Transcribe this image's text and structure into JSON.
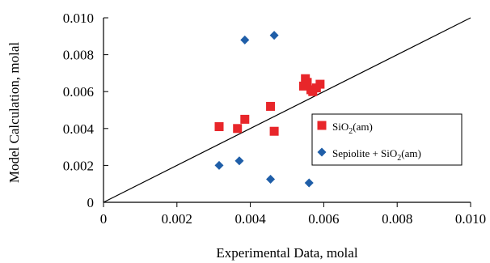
{
  "chart_data": {
    "type": "scatter",
    "title": "",
    "xlabel": "Experimental Data, molal",
    "ylabel": "Model Calculation, molal",
    "xlim": [
      0,
      0.01
    ],
    "ylim": [
      0,
      0.01
    ],
    "grid": false,
    "legend_position": "right",
    "x_tick_labels": [
      "0",
      "0.002",
      "0.004",
      "0.006",
      "0.008",
      "0.010"
    ],
    "y_tick_labels": [
      "0",
      "0.002",
      "0.004",
      "0.006",
      "0.008",
      "0.010"
    ],
    "x_ticks": [
      0,
      0.002,
      0.004,
      0.006,
      0.008,
      0.01
    ],
    "y_ticks": [
      0,
      0.002,
      0.004,
      0.006,
      0.008,
      0.01
    ],
    "reference_line": {
      "type": "1:1",
      "from": [
        0,
        0
      ],
      "to": [
        0.01,
        0.01
      ]
    },
    "series": [
      {
        "name": "SiO2(am)",
        "legend_base": "SiO",
        "legend_sub": "2",
        "legend_tail": "(am)",
        "marker": "square",
        "color": "#e8262a",
        "points": [
          [
            0.00315,
            0.0041
          ],
          [
            0.00365,
            0.004
          ],
          [
            0.00385,
            0.0045
          ],
          [
            0.00455,
            0.0052
          ],
          [
            0.00465,
            0.00385
          ],
          [
            0.00545,
            0.0063
          ],
          [
            0.0055,
            0.0067
          ],
          [
            0.00555,
            0.0065
          ],
          [
            0.00565,
            0.0061
          ],
          [
            0.0057,
            0.006
          ],
          [
            0.0058,
            0.0062
          ],
          [
            0.0059,
            0.0064
          ]
        ]
      },
      {
        "name": "Sepiolite + SiO2(am)",
        "legend_base": "Sepiolite + SiO",
        "legend_sub": "2",
        "legend_tail": "(am)",
        "marker": "diamond",
        "color": "#1f5ea8",
        "points": [
          [
            0.00315,
            0.002
          ],
          [
            0.0037,
            0.00225
          ],
          [
            0.00385,
            0.0088
          ],
          [
            0.00455,
            0.00125
          ],
          [
            0.00465,
            0.00905
          ],
          [
            0.0056,
            0.00105
          ]
        ]
      }
    ]
  }
}
